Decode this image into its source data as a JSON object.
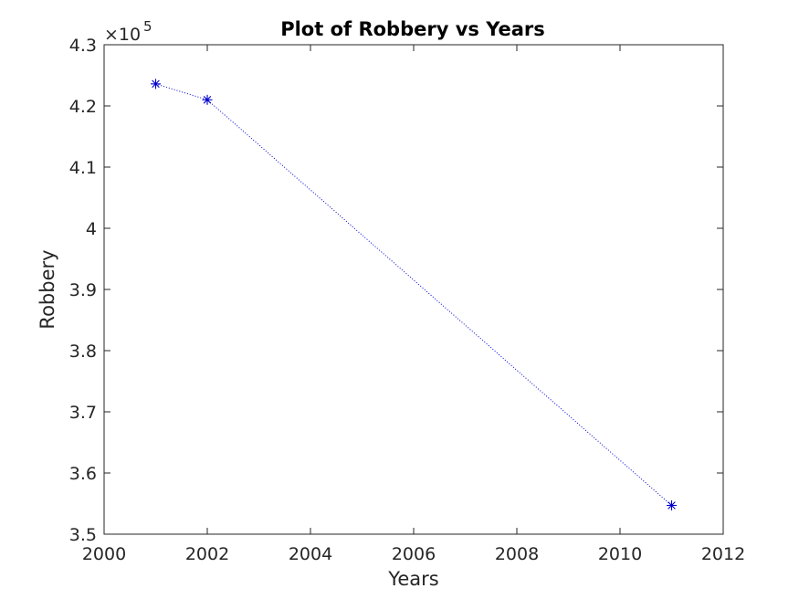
{
  "chart_data": {
    "type": "line",
    "title": "Plot of Robbery vs Years",
    "xlabel": "Years",
    "ylabel": "Robbery",
    "xlim": [
      2000,
      2012
    ],
    "ylim": [
      350000,
      430000
    ],
    "xticks": [
      2000,
      2002,
      2004,
      2006,
      2008,
      2010,
      2012
    ],
    "yticks": [
      350000,
      360000,
      370000,
      380000,
      390000,
      400000,
      410000,
      420000,
      430000
    ],
    "ytick_labels": [
      "3.5",
      "3.6",
      "3.7",
      "3.8",
      "3.9",
      "4",
      "4.1",
      "4.2",
      "4.3"
    ],
    "y_exponent_base": "×10",
    "y_exponent_power": "5",
    "grid": false,
    "marker": "asterisk",
    "line_style": "dotted",
    "series": [
      {
        "color": "#0000cc",
        "x": [
          2001,
          2002,
          2011
        ],
        "y": [
          423600,
          421000,
          354700
        ]
      }
    ]
  }
}
